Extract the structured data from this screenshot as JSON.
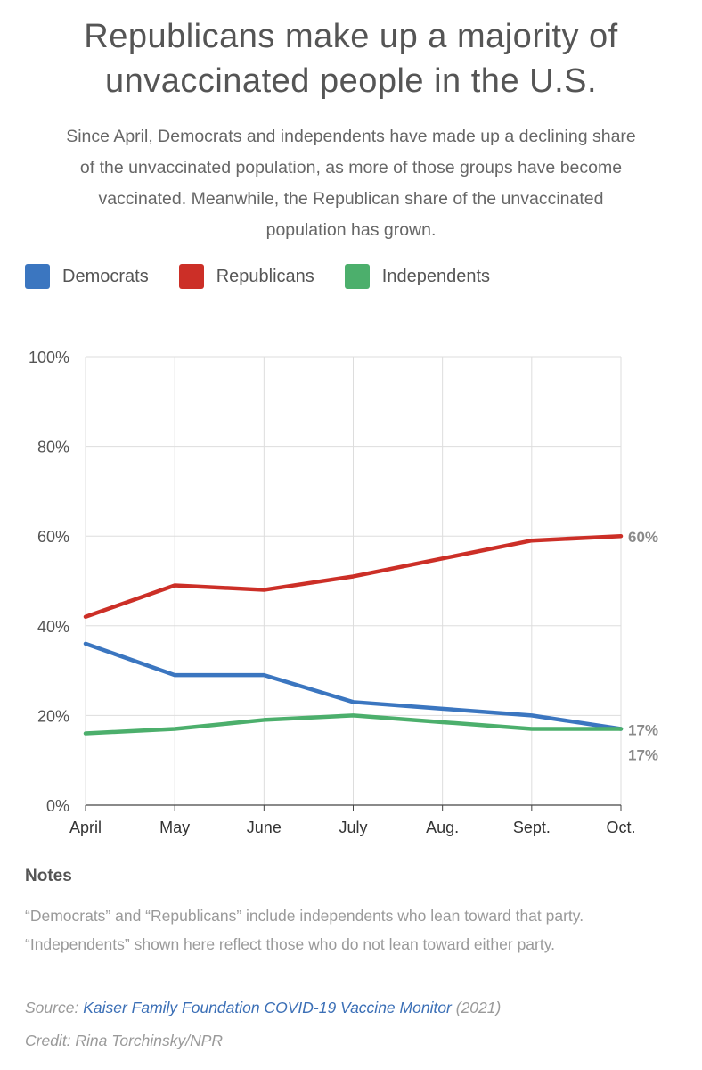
{
  "header": {
    "title_line1": "Republicans make up a majority of",
    "title_line2": "unvaccinated people in the U.S.",
    "subtitle_line1": "Since April, Democrats and independents have made up a declining share",
    "subtitle_line2": "of the unvaccinated population, as more of those groups have become",
    "subtitle_line3": "vaccinated. Meanwhile, the Republican share of the unvaccinated",
    "subtitle_line4": "population has grown."
  },
  "legend": [
    {
      "label": "Democrats",
      "color": "#3b76c0"
    },
    {
      "label": "Republicans",
      "color": "#cc2f27"
    },
    {
      "label": "Independents",
      "color": "#4caf6c"
    }
  ],
  "chart_data": {
    "type": "line",
    "title": "Republicans make up a majority of unvaccinated people in the U.S.",
    "categories": [
      "April",
      "May",
      "June",
      "July",
      "Aug.",
      "Sept.",
      "Oct."
    ],
    "ylim": [
      0,
      100
    ],
    "yticks": [
      "0%",
      "20%",
      "40%",
      "60%",
      "80%",
      "100%"
    ],
    "ytick_values": [
      0,
      20,
      40,
      60,
      80,
      100
    ],
    "grid": true,
    "legend_position": "top-left",
    "series": [
      {
        "name": "Democrats",
        "color": "#3b76c0",
        "values": [
          36,
          29,
          29,
          23,
          21.5,
          20,
          17
        ],
        "end_label": "17%"
      },
      {
        "name": "Republicans",
        "color": "#cc2f27",
        "values": [
          42,
          49,
          48,
          51,
          55,
          59,
          60
        ],
        "end_label": "60%"
      },
      {
        "name": "Independents",
        "color": "#4caf6c",
        "values": [
          16,
          17,
          19,
          20,
          18.5,
          17,
          17
        ],
        "end_label": "17%"
      }
    ]
  },
  "notes": {
    "heading": "Notes",
    "line1": "“Democrats” and “Republicans” include independents who lean toward that party.",
    "line2": "“Independents” shown here reflect those who do not lean toward either party."
  },
  "footer": {
    "source_prefix": "Source: ",
    "source_link": "Kaiser Family Foundation COVID-19 Vaccine Monitor",
    "source_suffix": " (2021)",
    "credit": "Credit: Rina Torchinsky/NPR"
  }
}
